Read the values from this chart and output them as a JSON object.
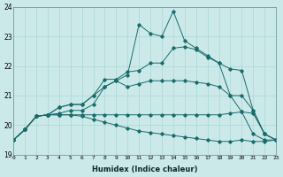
{
  "xlabel": "Humidex (Indice chaleur)",
  "xlim": [
    0,
    23
  ],
  "ylim": [
    19,
    24
  ],
  "yticks": [
    19,
    20,
    21,
    22,
    23,
    24
  ],
  "xticks": [
    0,
    1,
    2,
    3,
    4,
    5,
    6,
    7,
    8,
    9,
    10,
    11,
    12,
    13,
    14,
    15,
    16,
    17,
    18,
    19,
    20,
    21,
    22,
    23
  ],
  "bg_color": "#cce9e9",
  "line_color": "#1a6b6b",
  "grid_color": "#aad5d5",
  "series": [
    {
      "x": [
        0,
        1,
        2,
        3,
        4,
        5,
        6,
        7,
        8,
        9,
        10,
        11,
        12,
        13,
        14,
        15,
        16,
        17,
        18,
        19,
        20,
        21,
        22,
        23
      ],
      "y": [
        19.5,
        19.85,
        20.3,
        20.35,
        20.4,
        20.5,
        20.5,
        20.7,
        21.3,
        21.5,
        21.7,
        23.4,
        23.1,
        23.0,
        23.85,
        22.85,
        22.6,
        22.35,
        22.1,
        21.0,
        20.45,
        19.7,
        19.5,
        19.5
      ]
    },
    {
      "x": [
        0,
        1,
        2,
        3,
        4,
        5,
        6,
        7,
        8,
        9,
        10,
        11,
        12,
        13,
        14,
        15,
        16,
        17,
        18,
        19,
        20,
        21,
        22,
        23
      ],
      "y": [
        19.5,
        19.85,
        20.3,
        20.35,
        20.6,
        20.7,
        20.7,
        21.0,
        21.55,
        21.55,
        21.8,
        21.85,
        22.1,
        22.1,
        22.6,
        22.65,
        22.55,
        22.3,
        22.1,
        21.9,
        21.85,
        20.5,
        19.7,
        19.5
      ]
    },
    {
      "x": [
        0,
        1,
        2,
        3,
        4,
        5,
        6,
        7,
        8,
        9,
        10,
        11,
        12,
        13,
        14,
        15,
        16,
        17,
        18,
        19,
        20,
        21,
        22,
        23
      ],
      "y": [
        19.5,
        19.85,
        20.3,
        20.35,
        20.6,
        20.7,
        20.7,
        21.0,
        21.3,
        21.5,
        21.3,
        21.4,
        21.5,
        21.5,
        21.5,
        21.5,
        21.45,
        21.4,
        21.3,
        21.0,
        21.0,
        20.5,
        19.7,
        19.5
      ]
    },
    {
      "x": [
        0,
        1,
        2,
        3,
        4,
        5,
        6,
        7,
        8,
        9,
        10,
        11,
        12,
        13,
        14,
        15,
        16,
        17,
        18,
        19,
        20,
        21,
        22,
        23
      ],
      "y": [
        19.5,
        19.85,
        20.3,
        20.35,
        20.35,
        20.35,
        20.35,
        20.35,
        20.35,
        20.35,
        20.35,
        20.35,
        20.35,
        20.35,
        20.35,
        20.35,
        20.35,
        20.35,
        20.35,
        20.4,
        20.45,
        20.4,
        19.7,
        19.5
      ]
    },
    {
      "x": [
        0,
        1,
        2,
        3,
        4,
        5,
        6,
        7,
        8,
        9,
        10,
        11,
        12,
        13,
        14,
        15,
        16,
        17,
        18,
        19,
        20,
        21,
        22,
        23
      ],
      "y": [
        19.5,
        19.85,
        20.3,
        20.35,
        20.35,
        20.35,
        20.3,
        20.2,
        20.1,
        20.0,
        19.9,
        19.8,
        19.75,
        19.7,
        19.65,
        19.6,
        19.55,
        19.5,
        19.45,
        19.45,
        19.5,
        19.45,
        19.45,
        19.5
      ]
    }
  ]
}
